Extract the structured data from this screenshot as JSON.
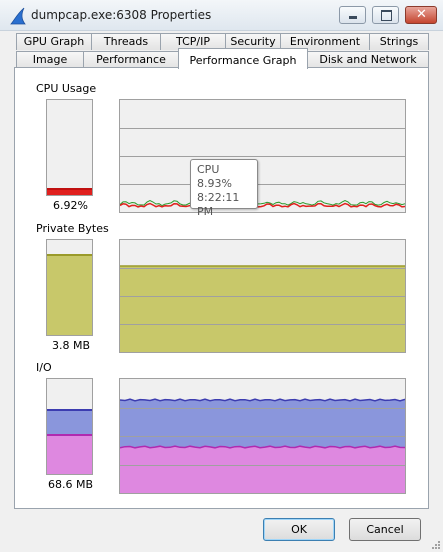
{
  "window": {
    "title": "dumpcap.exe:6308 Properties"
  },
  "tabs_row1": [
    "GPU Graph",
    "Threads",
    "TCP/IP",
    "Security",
    "Environment",
    "Strings"
  ],
  "tabs_row2": [
    "Image",
    "Performance",
    "Performance Graph",
    "Disk and Network"
  ],
  "active_tab": "Performance Graph",
  "cpu": {
    "label": "CPU Usage",
    "value": "6.92%",
    "level": 0.0692,
    "color": "#e0201e"
  },
  "private_bytes": {
    "label": "Private Bytes",
    "value": "3.8 MB",
    "level": 0.85,
    "color": "#c8c86a"
  },
  "io": {
    "label": "I/O",
    "value": "68.6 MB",
    "level_read": 0.68,
    "level_write": 0.42,
    "color_read": "#8a96dc",
    "color_write": "#de88e0"
  },
  "tooltip": {
    "title": "CPU",
    "value": "8.93%",
    "time": "8:22:11 PM"
  },
  "buttons": {
    "ok": "OK",
    "cancel": "Cancel"
  }
}
